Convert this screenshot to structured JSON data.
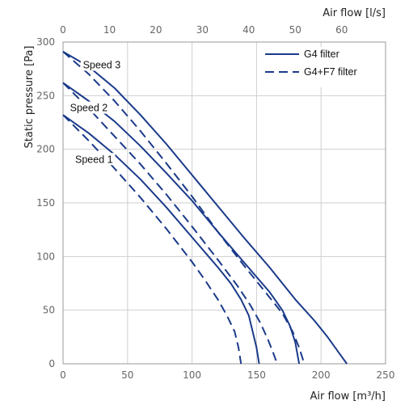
{
  "chart_data": {
    "type": "line",
    "xlabel": "Air flow [m³/h]",
    "x2label": "Air flow [l/s]",
    "ylabel": "Static pressure [Pa]",
    "xlim": [
      0,
      250
    ],
    "x2lim": [
      0,
      69.444
    ],
    "ylim": [
      0,
      300
    ],
    "x_ticks": [
      0,
      50,
      100,
      150,
      200,
      250
    ],
    "x2_ticks": [
      0,
      10,
      20,
      30,
      40,
      50,
      60
    ],
    "y_ticks": [
      0,
      50,
      100,
      150,
      200,
      250,
      300
    ],
    "grid": true,
    "legend_position": "top-right",
    "line_color": "#1a3a8a",
    "legend": [
      {
        "label": "G4 filter",
        "style": "solid"
      },
      {
        "label": "G4+F7 filter",
        "style": "dashed"
      }
    ],
    "speed_labels": [
      {
        "text": "Speed 3",
        "x": 30,
        "y": 277
      },
      {
        "text": "Speed 2",
        "x": 20,
        "y": 237
      },
      {
        "text": "Speed 1",
        "x": 24,
        "y": 189
      }
    ],
    "series": [
      {
        "style": "solid",
        "points": [
          [
            0,
            291
          ],
          [
            20,
            277
          ],
          [
            40,
            257
          ],
          [
            60,
            232
          ],
          [
            80,
            205
          ],
          [
            100,
            176
          ],
          [
            120,
            147
          ],
          [
            140,
            118
          ],
          [
            160,
            90
          ],
          [
            180,
            60
          ],
          [
            195,
            40
          ],
          [
            205,
            25
          ],
          [
            214,
            10
          ],
          [
            220,
            0
          ]
        ]
      },
      {
        "style": "dashed",
        "points": [
          [
            0,
            291
          ],
          [
            20,
            270
          ],
          [
            40,
            245
          ],
          [
            60,
            217
          ],
          [
            80,
            187
          ],
          [
            100,
            156
          ],
          [
            120,
            123
          ],
          [
            140,
            92
          ],
          [
            160,
            62
          ],
          [
            170,
            47
          ],
          [
            178,
            30
          ],
          [
            183,
            15
          ],
          [
            187,
            0
          ]
        ]
      },
      {
        "style": "solid",
        "points": [
          [
            0,
            262
          ],
          [
            20,
            245
          ],
          [
            40,
            226
          ],
          [
            60,
            203
          ],
          [
            80,
            178
          ],
          [
            100,
            152
          ],
          [
            120,
            123
          ],
          [
            140,
            95
          ],
          [
            160,
            67
          ],
          [
            170,
            50
          ],
          [
            176,
            35
          ],
          [
            180,
            20
          ],
          [
            183,
            0
          ]
        ]
      },
      {
        "style": "dashed",
        "points": [
          [
            0,
            262
          ],
          [
            20,
            238
          ],
          [
            40,
            212
          ],
          [
            60,
            186
          ],
          [
            80,
            158
          ],
          [
            100,
            128
          ],
          [
            120,
            97
          ],
          [
            135,
            73
          ],
          [
            145,
            55
          ],
          [
            153,
            38
          ],
          [
            159,
            22
          ],
          [
            163,
            10
          ],
          [
            166,
            0
          ]
        ]
      },
      {
        "style": "solid",
        "points": [
          [
            0,
            232
          ],
          [
            20,
            215
          ],
          [
            40,
            195
          ],
          [
            60,
            172
          ],
          [
            80,
            146
          ],
          [
            100,
            118
          ],
          [
            120,
            90
          ],
          [
            130,
            75
          ],
          [
            138,
            60
          ],
          [
            144,
            45
          ],
          [
            147,
            30
          ],
          [
            150,
            15
          ],
          [
            152,
            0
          ]
        ]
      },
      {
        "style": "dashed",
        "points": [
          [
            0,
            232
          ],
          [
            20,
            208
          ],
          [
            40,
            182
          ],
          [
            60,
            155
          ],
          [
            80,
            126
          ],
          [
            100,
            95
          ],
          [
            110,
            78
          ],
          [
            120,
            60
          ],
          [
            127,
            45
          ],
          [
            133,
            30
          ],
          [
            136,
            15
          ],
          [
            138,
            0
          ]
        ]
      }
    ]
  }
}
